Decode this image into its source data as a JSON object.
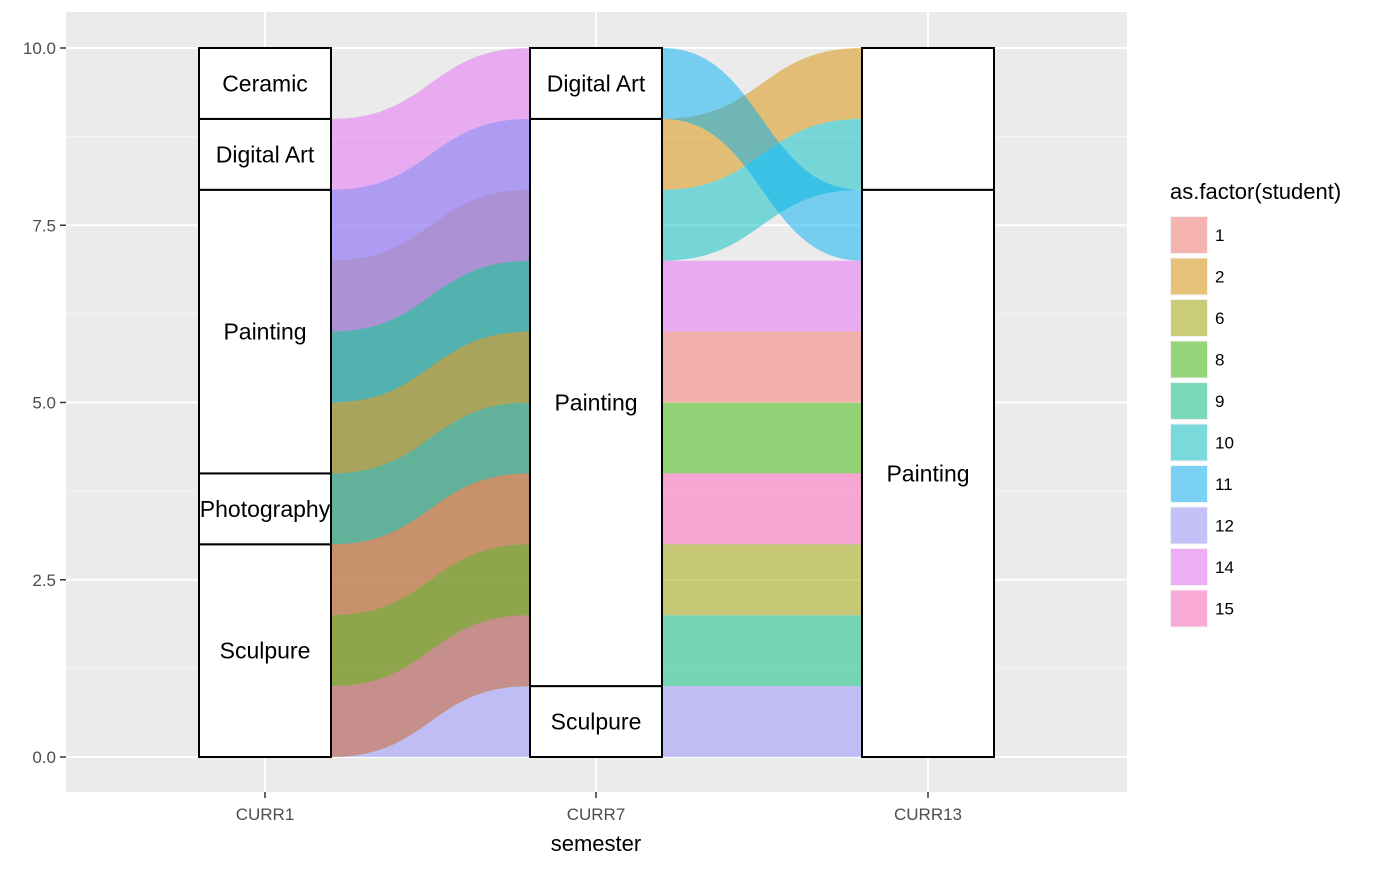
{
  "chart_data": {
    "type": "alluvial",
    "xlabel": "semester",
    "ylabel": "",
    "ylim": [
      -0.5,
      10.5
    ],
    "yticks": [
      0.0,
      2.5,
      5.0,
      7.5,
      10.0
    ],
    "ytick_labels": [
      "0.0",
      "2.5",
      "5.0",
      "7.5",
      "10.0"
    ],
    "axes": [
      "CURR1",
      "CURR7",
      "CURR13"
    ],
    "grid": true,
    "legend": {
      "title": "as.factor(student)",
      "position": "right",
      "entries": [
        {
          "label": "1",
          "color": "#F8766D"
        },
        {
          "label": "2",
          "color": "#D89000"
        },
        {
          "label": "6",
          "color": "#A3A500"
        },
        {
          "label": "8",
          "color": "#39B600"
        },
        {
          "label": "9",
          "color": "#00BF7D"
        },
        {
          "label": "10",
          "color": "#00BFC4"
        },
        {
          "label": "11",
          "color": "#00B0F6"
        },
        {
          "label": "12",
          "color": "#9590FF"
        },
        {
          "label": "14",
          "color": "#E76BF3"
        },
        {
          "label": "15",
          "color": "#FF62BC"
        }
      ]
    },
    "strata": [
      [
        {
          "label": "Sculpure",
          "ymin": 0,
          "ymax": 3
        },
        {
          "label": "Photography",
          "ymin": 3,
          "ymax": 4
        },
        {
          "label": "Painting",
          "ymin": 4,
          "ymax": 8
        },
        {
          "label": "Digital Art",
          "ymin": 8,
          "ymax": 9
        },
        {
          "label": "Ceramic",
          "ymin": 9,
          "ymax": 10
        }
      ],
      [
        {
          "label": "Sculpure",
          "ymin": 0,
          "ymax": 1
        },
        {
          "label": "Painting",
          "ymin": 1,
          "ymax": 9
        },
        {
          "label": "Digital Art",
          "ymin": 9,
          "ymax": 10
        }
      ],
      [
        {
          "label": "Painting",
          "ymin": 0,
          "ymax": 8
        },
        {
          "label": "",
          "ymin": 8,
          "ymax": 10
        }
      ]
    ],
    "flows": [
      {
        "student": "12",
        "from": [
          0,
          0
        ],
        "to": [
          1,
          0
        ]
      },
      {
        "student": "9",
        "from": [
          0,
          1
        ],
        "to": [
          1,
          2
        ]
      },
      {
        "student": "6",
        "from": [
          0,
          2
        ],
        "to": [
          1,
          3
        ]
      },
      {
        "student": "15",
        "from": [
          0,
          3
        ],
        "to": [
          1,
          4
        ]
      },
      {
        "student": "8",
        "from": [
          1,
          4
        ],
        "to": [
          2,
          5
        ]
      },
      {
        "student": "1",
        "from": [
          2,
          5
        ],
        "to": [
          3,
          6
        ]
      },
      {
        "student": "10",
        "from": [
          3,
          6
        ],
        "to": [
          4,
          7
        ]
      },
      {
        "student": "2",
        "from": [
          4,
          7
        ],
        "to": [
          5,
          8
        ]
      },
      {
        "student": "11",
        "from": [
          5,
          8
        ],
        "to": [
          6,
          9
        ]
      },
      {
        "student": "14",
        "from": [
          6,
          9
        ],
        "to": [
          7,
          10
        ]
      },
      {
        "student": "12",
        "from": [
          0,
          1
        ],
        "to": [
          0,
          1
        ]
      },
      {
        "student": "9",
        "from": [
          1,
          2
        ],
        "to": [
          1,
          2
        ]
      },
      {
        "student": "6",
        "from": [
          2,
          3
        ],
        "to": [
          2,
          3
        ]
      },
      {
        "student": "15",
        "from": [
          3,
          4
        ],
        "to": [
          3,
          4
        ]
      },
      {
        "student": "8",
        "from": [
          4,
          5
        ],
        "to": [
          4,
          5
        ]
      },
      {
        "student": "1",
        "from": [
          5,
          6
        ],
        "to": [
          5,
          6
        ]
      },
      {
        "student": "14",
        "from": [
          6,
          7
        ],
        "to": [
          6,
          7
        ]
      },
      {
        "student": "10",
        "from": [
          7,
          8
        ],
        "to": [
          8,
          9
        ]
      },
      {
        "student": "2",
        "from": [
          8,
          9
        ],
        "to": [
          9,
          10
        ]
      },
      {
        "student": "11",
        "from": [
          9,
          10
        ],
        "to": [
          7,
          8
        ]
      }
    ]
  }
}
